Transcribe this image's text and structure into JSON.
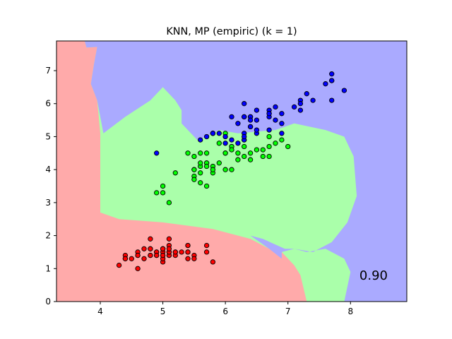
{
  "chart_data": {
    "type": "scatter",
    "title": "KNN, MP (empiric) (k = 1)",
    "xlabel": "",
    "ylabel": "",
    "xlim": [
      3.3,
      8.9
    ],
    "ylim": [
      0,
      7.9
    ],
    "xticks": [
      4,
      5,
      6,
      7,
      8
    ],
    "yticks": [
      0,
      1,
      2,
      3,
      4,
      5,
      6,
      7
    ],
    "grid": false,
    "annotation": "0.90",
    "region_colors": [
      "#FFAAAA",
      "#AAFFAA",
      "#AAAAFF"
    ],
    "point_colors": [
      "#FF0000",
      "#00FF00",
      "#0000FF"
    ],
    "regions": [
      {
        "class": 0,
        "polygon": [
          [
            3.3,
            0
          ],
          [
            3.3,
            7.9
          ],
          [
            3.75,
            7.9
          ],
          [
            3.78,
            7.7
          ],
          [
            3.95,
            7.72
          ],
          [
            3.9,
            7.2
          ],
          [
            3.85,
            6.6
          ],
          [
            3.95,
            6.1
          ],
          [
            4.0,
            5.1
          ],
          [
            4.0,
            3.2
          ],
          [
            4.0,
            2.7
          ],
          [
            4.3,
            2.5
          ],
          [
            5.0,
            2.4
          ],
          [
            5.8,
            2.2
          ],
          [
            6.4,
            1.9
          ],
          [
            6.7,
            1.6
          ],
          [
            6.9,
            1.5
          ],
          [
            7.1,
            1.1
          ],
          [
            7.2,
            0.8
          ],
          [
            7.3,
            0
          ]
        ]
      },
      {
        "class": 2,
        "polygon": [
          [
            3.75,
            7.9
          ],
          [
            8.9,
            7.9
          ],
          [
            8.9,
            0
          ],
          [
            7.9,
            0
          ],
          [
            8.0,
            0.9
          ],
          [
            7.9,
            1.3
          ],
          [
            7.6,
            1.6
          ],
          [
            7.3,
            1.5
          ],
          [
            7.1,
            1.6
          ],
          [
            6.9,
            1.5
          ],
          [
            6.9,
            1.3
          ],
          [
            6.7,
            1.6
          ],
          [
            6.55,
            1.8
          ],
          [
            6.4,
            2.0
          ],
          [
            6.6,
            1.9
          ],
          [
            6.95,
            1.6
          ],
          [
            7.1,
            1.6
          ],
          [
            7.4,
            1.5
          ],
          [
            7.7,
            1.8
          ],
          [
            7.95,
            2.4
          ],
          [
            8.1,
            3.2
          ],
          [
            8.05,
            4.4
          ],
          [
            7.9,
            5.0
          ],
          [
            7.6,
            5.2
          ],
          [
            7.1,
            5.4
          ],
          [
            6.8,
            5.2
          ],
          [
            6.2,
            5.1
          ],
          [
            5.9,
            5.2
          ],
          [
            5.7,
            5.0
          ],
          [
            5.55,
            4.9
          ],
          [
            5.5,
            5.0
          ],
          [
            5.3,
            5.4
          ],
          [
            5.3,
            5.8
          ],
          [
            5.2,
            6.1
          ],
          [
            5.0,
            6.5
          ],
          [
            4.8,
            6.1
          ],
          [
            4.4,
            5.6
          ],
          [
            4.05,
            5.1
          ],
          [
            3.95,
            6.1
          ],
          [
            3.85,
            6.6
          ],
          [
            3.9,
            7.2
          ],
          [
            3.95,
            7.72
          ],
          [
            3.78,
            7.7
          ]
        ]
      }
    ],
    "series": [
      {
        "class": 0,
        "points": [
          [
            5.1,
            1.4
          ],
          [
            4.9,
            1.4
          ],
          [
            4.7,
            1.3
          ],
          [
            4.6,
            1.5
          ],
          [
            5.0,
            1.4
          ],
          [
            5.4,
            1.7
          ],
          [
            4.6,
            1.4
          ],
          [
            5.0,
            1.5
          ],
          [
            4.4,
            1.4
          ],
          [
            4.9,
            1.5
          ],
          [
            5.4,
            1.5
          ],
          [
            4.8,
            1.6
          ],
          [
            4.8,
            1.4
          ],
          [
            4.3,
            1.1
          ],
          [
            5.8,
            1.2
          ],
          [
            5.7,
            1.5
          ],
          [
            5.4,
            1.3
          ],
          [
            5.1,
            1.4
          ],
          [
            5.7,
            1.7
          ],
          [
            5.1,
            1.5
          ],
          [
            5.4,
            1.7
          ],
          [
            5.1,
            1.5
          ],
          [
            4.6,
            1.0
          ],
          [
            5.1,
            1.7
          ],
          [
            4.8,
            1.9
          ],
          [
            5.0,
            1.6
          ],
          [
            5.0,
            1.6
          ],
          [
            5.2,
            1.5
          ],
          [
            5.2,
            1.4
          ],
          [
            4.7,
            1.6
          ],
          [
            4.8,
            1.6
          ],
          [
            5.4,
            1.5
          ],
          [
            5.2,
            1.5
          ],
          [
            5.5,
            1.4
          ],
          [
            4.9,
            1.5
          ],
          [
            5.0,
            1.2
          ],
          [
            5.5,
            1.3
          ],
          [
            4.9,
            1.4
          ],
          [
            4.4,
            1.3
          ],
          [
            5.1,
            1.5
          ],
          [
            5.0,
            1.3
          ],
          [
            4.5,
            1.3
          ],
          [
            4.4,
            1.3
          ],
          [
            5.0,
            1.6
          ],
          [
            5.1,
            1.9
          ],
          [
            4.8,
            1.4
          ],
          [
            5.1,
            1.6
          ],
          [
            4.6,
            1.4
          ],
          [
            5.3,
            1.5
          ],
          [
            5.0,
            1.4
          ]
        ]
      },
      {
        "class": 1,
        "points": [
          [
            7.0,
            4.7
          ],
          [
            6.4,
            4.5
          ],
          [
            6.9,
            4.9
          ],
          [
            5.5,
            4.0
          ],
          [
            6.5,
            4.6
          ],
          [
            5.7,
            4.5
          ],
          [
            6.3,
            4.7
          ],
          [
            4.9,
            3.3
          ],
          [
            6.6,
            4.6
          ],
          [
            5.2,
            3.9
          ],
          [
            5.0,
            3.5
          ],
          [
            5.9,
            4.2
          ],
          [
            6.0,
            4.0
          ],
          [
            6.1,
            4.7
          ],
          [
            5.6,
            3.6
          ],
          [
            6.7,
            4.4
          ],
          [
            5.6,
            4.5
          ],
          [
            5.8,
            4.1
          ],
          [
            6.2,
            4.5
          ],
          [
            5.6,
            3.9
          ],
          [
            5.9,
            4.8
          ],
          [
            6.1,
            4.0
          ],
          [
            6.3,
            4.9
          ],
          [
            6.1,
            4.7
          ],
          [
            6.4,
            4.3
          ],
          [
            6.6,
            4.4
          ],
          [
            6.8,
            4.8
          ],
          [
            6.7,
            5.0
          ],
          [
            6.0,
            4.5
          ],
          [
            5.7,
            3.5
          ],
          [
            5.5,
            3.8
          ],
          [
            5.5,
            3.7
          ],
          [
            5.8,
            3.9
          ],
          [
            6.0,
            5.1
          ],
          [
            5.4,
            4.5
          ],
          [
            6.0,
            4.5
          ],
          [
            6.7,
            4.7
          ],
          [
            6.3,
            4.4
          ],
          [
            5.6,
            4.1
          ],
          [
            5.5,
            4.0
          ],
          [
            5.5,
            4.4
          ],
          [
            6.1,
            4.6
          ],
          [
            5.8,
            4.0
          ],
          [
            5.0,
            3.3
          ],
          [
            5.6,
            4.2
          ],
          [
            5.7,
            4.2
          ],
          [
            5.7,
            4.2
          ],
          [
            6.2,
            4.3
          ],
          [
            5.1,
            3.0
          ],
          [
            5.7,
            4.1
          ]
        ]
      },
      {
        "class": 2,
        "points": [
          [
            6.3,
            6.0
          ],
          [
            5.8,
            5.1
          ],
          [
            7.1,
            5.9
          ],
          [
            6.3,
            5.6
          ],
          [
            6.5,
            5.8
          ],
          [
            7.6,
            6.6
          ],
          [
            4.9,
            4.5
          ],
          [
            7.3,
            6.3
          ],
          [
            6.7,
            5.8
          ],
          [
            7.2,
            6.1
          ],
          [
            6.5,
            5.1
          ],
          [
            6.4,
            5.3
          ],
          [
            6.8,
            5.5
          ],
          [
            5.7,
            5.0
          ],
          [
            5.8,
            5.1
          ],
          [
            6.4,
            5.3
          ],
          [
            6.5,
            5.5
          ],
          [
            7.7,
            6.7
          ],
          [
            7.7,
            6.9
          ],
          [
            6.0,
            5.0
          ],
          [
            6.9,
            5.7
          ],
          [
            5.6,
            4.9
          ],
          [
            7.7,
            6.7
          ],
          [
            6.3,
            4.9
          ],
          [
            6.7,
            5.7
          ],
          [
            7.2,
            6.0
          ],
          [
            6.2,
            4.8
          ],
          [
            6.1,
            4.9
          ],
          [
            6.4,
            5.6
          ],
          [
            7.2,
            5.8
          ],
          [
            7.4,
            6.1
          ],
          [
            7.9,
            6.4
          ],
          [
            6.4,
            5.6
          ],
          [
            6.3,
            5.1
          ],
          [
            6.1,
            5.6
          ],
          [
            7.7,
            6.1
          ],
          [
            6.3,
            5.6
          ],
          [
            6.4,
            5.5
          ],
          [
            6.0,
            4.8
          ],
          [
            6.9,
            5.4
          ],
          [
            6.7,
            5.6
          ],
          [
            6.9,
            5.1
          ],
          [
            5.8,
            5.1
          ],
          [
            6.8,
            5.9
          ],
          [
            6.7,
            5.7
          ],
          [
            6.7,
            5.2
          ],
          [
            6.3,
            5.0
          ],
          [
            6.5,
            5.2
          ],
          [
            6.2,
            5.4
          ],
          [
            5.9,
            5.1
          ]
        ]
      }
    ]
  }
}
